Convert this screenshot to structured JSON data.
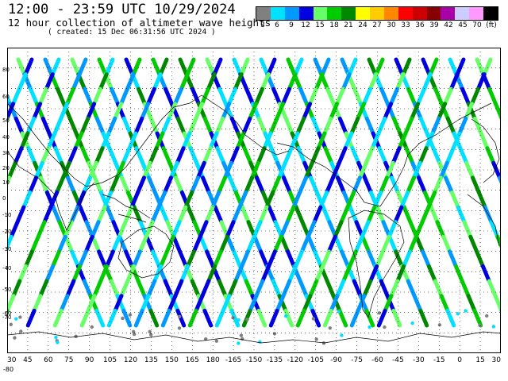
{
  "header": {
    "title": "12:00 - 23:59 UTC 10/29/2024",
    "subtitle": "12 hour collection of altimeter wave heights",
    "created": "( created: 15 Dec 06:31:56 UTC 2024 )"
  },
  "legend": {
    "unit": "(ft)",
    "bins": [
      {
        "label": "3",
        "color": "#808080"
      },
      {
        "label": "6",
        "color": "#00e0ff"
      },
      {
        "label": "9",
        "color": "#0099ff"
      },
      {
        "label": "12",
        "color": "#0000e0"
      },
      {
        "label": "15",
        "color": "#66ff66"
      },
      {
        "label": "18",
        "color": "#00cc00"
      },
      {
        "label": "21",
        "color": "#008800"
      },
      {
        "label": "24",
        "color": "#ffff00"
      },
      {
        "label": "27",
        "color": "#ffcc00"
      },
      {
        "label": "30",
        "color": "#ff8800"
      },
      {
        "label": "33",
        "color": "#ff0000"
      },
      {
        "label": "36",
        "color": "#cc0000"
      },
      {
        "label": "39",
        "color": "#880000"
      },
      {
        "label": "42",
        "color": "#aa00aa"
      },
      {
        "label": "45",
        "color": "#ccccff"
      },
      {
        "label": "70",
        "color": "#ff99ff"
      },
      {
        "label": "",
        "color": "#000000"
      }
    ]
  },
  "map": {
    "x_tick_labels": [
      "30",
      "45",
      "60",
      "75",
      "90",
      "105",
      "120",
      "135",
      "150",
      "165",
      "180",
      "-165",
      "-150",
      "-135",
      "-120",
      "-105",
      "-90",
      "-75",
      "-60",
      "-45",
      "-30",
      "-15",
      "0",
      "15",
      "30"
    ],
    "y_tick_labels": [
      "80",
      "60",
      "50",
      "40",
      "30",
      "20",
      "10",
      "0",
      "-10",
      "-20",
      "-30",
      "-40",
      "-50",
      "-60",
      "-70"
    ],
    "y_bottom_label": "-80",
    "grid": "dotted"
  }
}
